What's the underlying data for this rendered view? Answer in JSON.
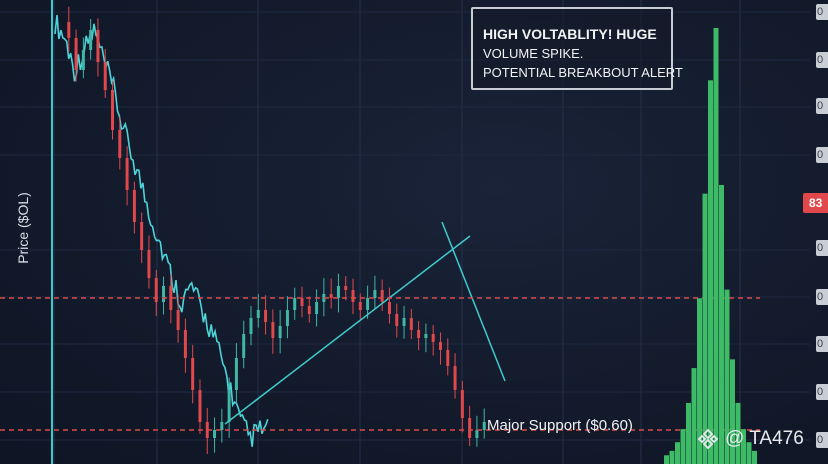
{
  "chart_data": {
    "type": "candlestick",
    "ylabel": "Price ($OL)",
    "annotations": {
      "alert_lines": [
        "HIGH VOLTABLITY! HUGE",
        "VOLUME SPIKE.",
        "POTENTIAL BREAKBOUT ALERT"
      ],
      "support_label": "Major Support ($0.60)",
      "resistance_badge": "83"
    },
    "y_tick_labels": [
      "0",
      "0",
      "0",
      "0",
      "0",
      "0",
      "0",
      "0",
      "0"
    ],
    "series": [
      {
        "name": "",
        "kind": "candles",
        "values": [
          1.62,
          1.58,
          1.5,
          1.55,
          1.6,
          1.52,
          1.45,
          1.35,
          1.28,
          1.2,
          1.12,
          1.05,
          0.98,
          0.92,
          0.96,
          0.9,
          0.85,
          0.78,
          0.7,
          0.62,
          0.58,
          0.6,
          0.62,
          0.7,
          0.78,
          0.84,
          0.88,
          0.9,
          0.87,
          0.83,
          0.86,
          0.9,
          0.93,
          0.91,
          0.89,
          0.92,
          0.94,
          0.93,
          0.96,
          0.95,
          0.92,
          0.9,
          0.93,
          0.95,
          0.92,
          0.89,
          0.86,
          0.88,
          0.85,
          0.83,
          0.84,
          0.82,
          0.8,
          0.76,
          0.7,
          0.63,
          0.58,
          0.6,
          0.62
        ]
      },
      {
        "name": "",
        "kind": "line",
        "values": [
          1.62,
          1.58,
          1.5,
          1.55,
          1.6,
          1.52,
          1.45,
          1.35,
          1.28,
          1.2,
          1.12,
          1.05,
          0.98,
          0.92,
          0.96,
          0.9,
          0.85,
          0.78,
          0.7,
          0.62,
          0.58,
          0.6
        ]
      },
      {
        "name": "",
        "kind": "volume",
        "values": [
          2,
          3,
          5,
          8,
          14,
          22,
          38,
          62,
          88,
          100,
          64,
          40,
          24,
          14,
          8,
          5,
          3
        ]
      }
    ],
    "levels": {
      "resistance": 0.93,
      "support": 0.6
    },
    "grid": true
  },
  "watermark": {
    "text": "@ TA476",
    "icon": "binance-diamond-icon"
  },
  "colors": {
    "up": "#3fb7a4",
    "down": "#e0484c",
    "line": "#4dd4d8",
    "volume": "#3dbb66",
    "level": "#d84a4a"
  }
}
